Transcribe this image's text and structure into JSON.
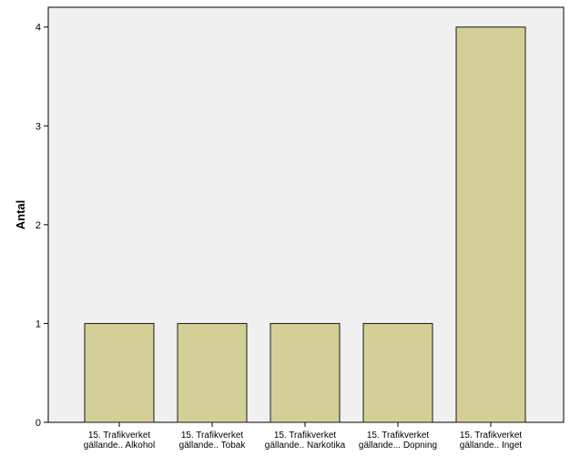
{
  "chart_data": {
    "type": "bar",
    "title": "",
    "xlabel": "",
    "ylabel": "Antal",
    "ylim": [
      0,
      4.2
    ],
    "yticks": [
      0,
      1,
      2,
      3,
      4
    ],
    "grid": false,
    "categories": [
      [
        "15. Trafikverket",
        "gällande.. Alkohol"
      ],
      [
        "15. Trafikverket",
        "gällande.. Tobak"
      ],
      [
        "15. Trafikverket",
        "gällande.. Narkotika"
      ],
      [
        "15. Trafikverket",
        "gällande... Dopning"
      ],
      [
        "15. Trafikverket",
        "gällande.. Inget"
      ]
    ],
    "values": [
      1,
      1,
      1,
      1,
      4
    ],
    "colors": {
      "bar": "#d3cf97",
      "bar_stroke": "#1a1a1a",
      "plot_bg": "#f0f0f0",
      "axis": "#000000"
    }
  }
}
